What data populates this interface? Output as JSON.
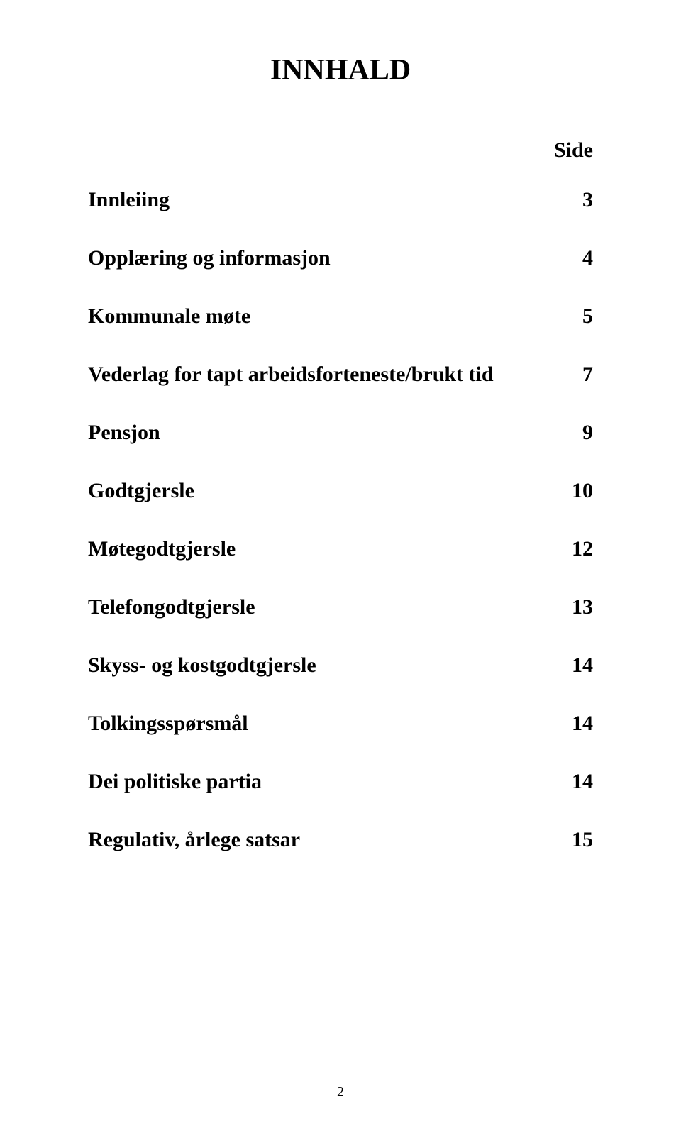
{
  "title": "INNHALD",
  "toc_header": "Side",
  "toc": [
    {
      "label": "Innleiing",
      "page": "3"
    },
    {
      "label": "Opplæring og informasjon",
      "page": "4"
    },
    {
      "label": "Kommunale møte",
      "page": "5"
    },
    {
      "label": "Vederlag for tapt arbeidsforteneste/brukt tid",
      "page": "7"
    },
    {
      "label": "Pensjon",
      "page": "9"
    },
    {
      "label": "Godtgjersle",
      "page": "10"
    },
    {
      "label": "Møtegodtgjersle",
      "page": "12"
    },
    {
      "label": "Telefongodtgjersle",
      "page": "13"
    },
    {
      "label": "Skyss- og kostgodtgjersle",
      "page": "14"
    },
    {
      "label": "Tolkingsspørsmål",
      "page": "14"
    },
    {
      "label": "Dei politiske partia",
      "page": "14"
    },
    {
      "label": "Regulativ, årlege satsar",
      "page": "15"
    }
  ],
  "page_number": "2",
  "styling": {
    "background_color": "#ffffff",
    "text_color": "#000000",
    "font_family": "Times New Roman",
    "title_fontsize": 42,
    "header_fontsize": 30,
    "row_fontsize": 30,
    "page_number_fontsize": 20,
    "font_weight": "bold"
  }
}
